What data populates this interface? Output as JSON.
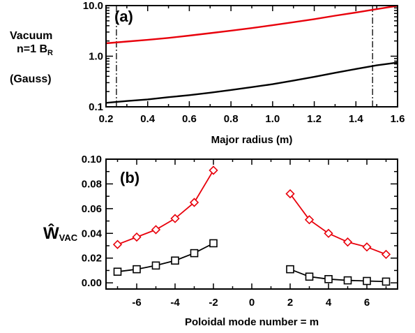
{
  "chart_data": [
    {
      "type": "line",
      "panel_label": "(a)",
      "ylabel_line1": "Vacuum",
      "ylabel_line2_main": "n=1 B",
      "ylabel_line2_sub": "R",
      "ylabel_line3": "(Gauss)",
      "xlabel": "Major radius (m)",
      "yscale": "log",
      "xlim": [
        0.2,
        1.6
      ],
      "ylim": [
        0.1,
        10.0
      ],
      "xticks": [
        "0.2",
        "0.4",
        "0.6",
        "0.8",
        "1.0",
        "1.2",
        "1.4",
        "1.6"
      ],
      "yticks": [
        "0.1",
        "1.0",
        "10.0"
      ],
      "vlines": [
        0.25,
        1.48
      ],
      "series": [
        {
          "color": "#e8000b",
          "x": [
            0.2,
            0.3,
            0.4,
            0.5,
            0.6,
            0.7,
            0.8,
            0.9,
            1.0,
            1.1,
            1.2,
            1.3,
            1.4,
            1.5,
            1.6
          ],
          "y": [
            1.8,
            1.95,
            2.1,
            2.3,
            2.55,
            2.85,
            3.2,
            3.6,
            4.1,
            4.7,
            5.4,
            6.3,
            7.3,
            8.5,
            9.9
          ]
        },
        {
          "color": "#000000",
          "x": [
            0.2,
            0.3,
            0.4,
            0.5,
            0.6,
            0.7,
            0.8,
            0.9,
            1.0,
            1.1,
            1.2,
            1.3,
            1.4,
            1.5,
            1.6
          ],
          "y": [
            0.12,
            0.13,
            0.14,
            0.155,
            0.17,
            0.19,
            0.215,
            0.245,
            0.28,
            0.33,
            0.39,
            0.47,
            0.56,
            0.66,
            0.75
          ]
        }
      ]
    },
    {
      "type": "line",
      "panel_label": "(b)",
      "ylabel_main": "Ŵ",
      "ylabel_sub": "VAC",
      "xlabel": "Poloidal mode number = m",
      "xlim": [
        -7.6,
        7.6
      ],
      "ylim": [
        -0.005,
        0.1
      ],
      "xticks": [
        "-6",
        "-4",
        "-2",
        "0",
        "2",
        "4",
        "6"
      ],
      "xtick_values": [
        -6,
        -4,
        -2,
        0,
        2,
        4,
        6
      ],
      "yticks": [
        "0.00",
        "0.02",
        "0.04",
        "0.06",
        "0.08",
        "0.10"
      ],
      "ytick_values": [
        0.0,
        0.02,
        0.04,
        0.06,
        0.08,
        0.1
      ],
      "series": [
        {
          "color": "#e8000b",
          "marker": "diamond",
          "x": [
            -7,
            -6,
            -5,
            -4,
            -3,
            -2
          ],
          "y": [
            0.031,
            0.037,
            0.043,
            0.052,
            0.065,
            0.091
          ]
        },
        {
          "color": "#e8000b",
          "marker": "diamond",
          "x": [
            2,
            3,
            4,
            5,
            6,
            7
          ],
          "y": [
            0.072,
            0.051,
            0.04,
            0.033,
            0.029,
            0.023
          ]
        },
        {
          "color": "#000000",
          "marker": "square",
          "x": [
            -7,
            -6,
            -5,
            -4,
            -3,
            -2
          ],
          "y": [
            0.009,
            0.011,
            0.014,
            0.018,
            0.024,
            0.032
          ]
        },
        {
          "color": "#000000",
          "marker": "square",
          "x": [
            2,
            3,
            4,
            5,
            6,
            7
          ],
          "y": [
            0.011,
            0.005,
            0.003,
            0.002,
            0.0015,
            0.001
          ]
        }
      ]
    }
  ]
}
